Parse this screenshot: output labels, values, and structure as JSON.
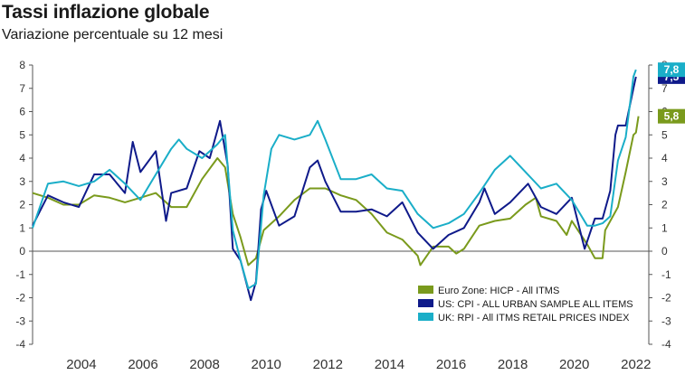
{
  "title": "Tassi inflazione globale",
  "subtitle": "Variazione percentuale su 12 mesi",
  "chart_data": {
    "type": "line",
    "title": "Tassi inflazione globale",
    "subtitle": "Variazione percentuale su 12 mesi",
    "xlabel": "",
    "ylabel": "",
    "ylim": [
      -4,
      8
    ],
    "xlim": [
      "2002-06",
      "2022-06"
    ],
    "yticks": [
      "-4",
      "-3",
      "-2",
      "-1",
      "0",
      "1",
      "2",
      "3",
      "4",
      "5",
      "6",
      "7",
      "8"
    ],
    "xticks": [
      "2004",
      "2006",
      "2008",
      "2010",
      "2012",
      "2014",
      "2016",
      "2018",
      "2020",
      "2022"
    ],
    "grid": false,
    "legend_position": "bottom-right",
    "series": [
      {
        "name": "Euro Zone: HICP - All ITMS",
        "color": "#7a9a1c",
        "last_value_label": "5,8",
        "points": [
          [
            "2002-06",
            2.5
          ],
          [
            "2002-12",
            2.3
          ],
          [
            "2003-06",
            2.0
          ],
          [
            "2003-12",
            2.0
          ],
          [
            "2004-06",
            2.4
          ],
          [
            "2004-12",
            2.3
          ],
          [
            "2005-06",
            2.1
          ],
          [
            "2005-12",
            2.3
          ],
          [
            "2006-06",
            2.5
          ],
          [
            "2006-12",
            1.9
          ],
          [
            "2007-06",
            1.9
          ],
          [
            "2007-12",
            3.1
          ],
          [
            "2008-06",
            4.0
          ],
          [
            "2008-09",
            3.6
          ],
          [
            "2008-12",
            1.6
          ],
          [
            "2009-03",
            0.6
          ],
          [
            "2009-06",
            -0.6
          ],
          [
            "2009-09",
            -0.3
          ],
          [
            "2009-12",
            0.9
          ],
          [
            "2010-06",
            1.5
          ],
          [
            "2010-12",
            2.2
          ],
          [
            "2011-06",
            2.7
          ],
          [
            "2011-12",
            2.7
          ],
          [
            "2012-06",
            2.4
          ],
          [
            "2012-12",
            2.2
          ],
          [
            "2013-06",
            1.6
          ],
          [
            "2013-12",
            0.8
          ],
          [
            "2014-06",
            0.5
          ],
          [
            "2014-12",
            -0.2
          ],
          [
            "2015-01",
            -0.6
          ],
          [
            "2015-06",
            0.2
          ],
          [
            "2015-12",
            0.2
          ],
          [
            "2016-03",
            -0.1
          ],
          [
            "2016-06",
            0.1
          ],
          [
            "2016-12",
            1.1
          ],
          [
            "2017-06",
            1.3
          ],
          [
            "2017-12",
            1.4
          ],
          [
            "2018-06",
            2.0
          ],
          [
            "2018-10",
            2.3
          ],
          [
            "2018-12",
            1.5
          ],
          [
            "2019-06",
            1.3
          ],
          [
            "2019-10",
            0.7
          ],
          [
            "2019-12",
            1.3
          ],
          [
            "2020-06",
            0.3
          ],
          [
            "2020-09",
            -0.3
          ],
          [
            "2020-12",
            -0.3
          ],
          [
            "2021-01",
            0.9
          ],
          [
            "2021-06",
            1.9
          ],
          [
            "2021-09",
            3.4
          ],
          [
            "2021-12",
            5.0
          ],
          [
            "2022-01",
            5.1
          ],
          [
            "2022-02",
            5.8
          ]
        ]
      },
      {
        "name": "US: CPI - ALL URBAN SAMPLE ALL ITEMS",
        "color": "#0f1a8a",
        "last_value_label": "7,5",
        "points": [
          [
            "2002-06",
            1.1
          ],
          [
            "2002-12",
            2.4
          ],
          [
            "2003-06",
            2.1
          ],
          [
            "2003-12",
            1.9
          ],
          [
            "2004-06",
            3.3
          ],
          [
            "2004-12",
            3.3
          ],
          [
            "2005-06",
            2.5
          ],
          [
            "2005-09",
            4.7
          ],
          [
            "2005-12",
            3.4
          ],
          [
            "2006-06",
            4.3
          ],
          [
            "2006-10",
            1.3
          ],
          [
            "2006-12",
            2.5
          ],
          [
            "2007-06",
            2.7
          ],
          [
            "2007-11",
            4.3
          ],
          [
            "2008-03",
            4.0
          ],
          [
            "2008-07",
            5.6
          ],
          [
            "2008-10",
            3.7
          ],
          [
            "2008-12",
            0.1
          ],
          [
            "2009-03",
            -0.4
          ],
          [
            "2009-07",
            -2.1
          ],
          [
            "2009-09",
            -1.3
          ],
          [
            "2009-11",
            1.8
          ],
          [
            "2010-01",
            2.6
          ],
          [
            "2010-06",
            1.1
          ],
          [
            "2010-12",
            1.5
          ],
          [
            "2011-06",
            3.6
          ],
          [
            "2011-09",
            3.9
          ],
          [
            "2011-12",
            3.0
          ],
          [
            "2012-06",
            1.7
          ],
          [
            "2012-12",
            1.7
          ],
          [
            "2013-06",
            1.8
          ],
          [
            "2013-12",
            1.5
          ],
          [
            "2014-06",
            2.1
          ],
          [
            "2014-12",
            0.8
          ],
          [
            "2015-06",
            0.1
          ],
          [
            "2015-12",
            0.7
          ],
          [
            "2016-06",
            1.0
          ],
          [
            "2016-12",
            2.1
          ],
          [
            "2017-02",
            2.7
          ],
          [
            "2017-06",
            1.6
          ],
          [
            "2017-12",
            2.1
          ],
          [
            "2018-07",
            2.9
          ],
          [
            "2018-12",
            1.9
          ],
          [
            "2019-06",
            1.6
          ],
          [
            "2019-12",
            2.3
          ],
          [
            "2020-05",
            0.1
          ],
          [
            "2020-09",
            1.4
          ],
          [
            "2020-12",
            1.4
          ],
          [
            "2021-03",
            2.6
          ],
          [
            "2021-05",
            5.0
          ],
          [
            "2021-06",
            5.4
          ],
          [
            "2021-09",
            5.4
          ],
          [
            "2021-12",
            7.0
          ],
          [
            "2022-01",
            7.5
          ]
        ]
      },
      {
        "name": "UK: RPI - All ITMS RETAIL PRICES INDEX",
        "color": "#1aaec8",
        "last_value_label": "7,8",
        "points": [
          [
            "2002-06",
            1.0
          ],
          [
            "2002-12",
            2.9
          ],
          [
            "2003-06",
            3.0
          ],
          [
            "2003-12",
            2.8
          ],
          [
            "2004-06",
            3.0
          ],
          [
            "2004-12",
            3.5
          ],
          [
            "2005-06",
            2.9
          ],
          [
            "2005-12",
            2.2
          ],
          [
            "2006-06",
            3.3
          ],
          [
            "2006-12",
            4.4
          ],
          [
            "2007-03",
            4.8
          ],
          [
            "2007-06",
            4.4
          ],
          [
            "2007-12",
            4.0
          ],
          [
            "2008-06",
            4.6
          ],
          [
            "2008-09",
            5.0
          ],
          [
            "2008-12",
            0.9
          ],
          [
            "2009-03",
            -0.4
          ],
          [
            "2009-06",
            -1.6
          ],
          [
            "2009-09",
            -1.4
          ],
          [
            "2009-12",
            2.4
          ],
          [
            "2010-03",
            4.4
          ],
          [
            "2010-06",
            5.0
          ],
          [
            "2010-12",
            4.8
          ],
          [
            "2011-06",
            5.0
          ],
          [
            "2011-09",
            5.6
          ],
          [
            "2011-12",
            4.8
          ],
          [
            "2012-06",
            3.1
          ],
          [
            "2012-12",
            3.1
          ],
          [
            "2013-06",
            3.3
          ],
          [
            "2013-12",
            2.7
          ],
          [
            "2014-06",
            2.6
          ],
          [
            "2014-12",
            1.6
          ],
          [
            "2015-06",
            1.0
          ],
          [
            "2015-12",
            1.2
          ],
          [
            "2016-06",
            1.6
          ],
          [
            "2016-12",
            2.5
          ],
          [
            "2017-06",
            3.5
          ],
          [
            "2017-12",
            4.1
          ],
          [
            "2018-06",
            3.4
          ],
          [
            "2018-12",
            2.7
          ],
          [
            "2019-06",
            2.9
          ],
          [
            "2019-12",
            2.2
          ],
          [
            "2020-06",
            1.1
          ],
          [
            "2020-09",
            1.1
          ],
          [
            "2020-12",
            1.2
          ],
          [
            "2021-03",
            1.5
          ],
          [
            "2021-06",
            3.9
          ],
          [
            "2021-09",
            4.9
          ],
          [
            "2021-12",
            7.5
          ],
          [
            "2022-01",
            7.8
          ]
        ]
      }
    ]
  }
}
